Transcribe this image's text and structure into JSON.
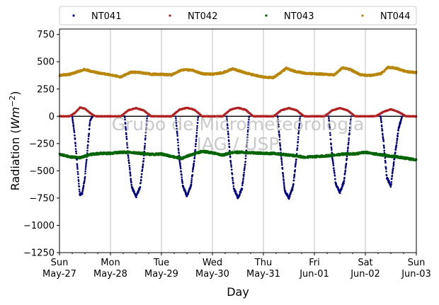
{
  "chart_data": {
    "type": "scatter",
    "xlabel": "Day",
    "ylabel": "Radiation",
    "ylabel_unit": "Wm",
    "ylabel_unit_exp": "−2",
    "ylim": [
      -1250,
      800
    ],
    "xlim": [
      0,
      7
    ],
    "yticks": [
      -1250,
      -1000,
      -750,
      -500,
      -250,
      0,
      250,
      500,
      750
    ],
    "ytick_labels": [
      "−1250",
      "−1000",
      "−750",
      "−500",
      "−250",
      "0",
      "250",
      "500",
      "750"
    ],
    "xticks": [
      {
        "day": 0,
        "top": "Sun",
        "bottom": "May-27"
      },
      {
        "day": 1,
        "top": "Mon",
        "bottom": "May-28"
      },
      {
        "day": 2,
        "top": "Tue",
        "bottom": "May-29"
      },
      {
        "day": 3,
        "top": "Wed",
        "bottom": "May-30"
      },
      {
        "day": 4,
        "top": "Thu",
        "bottom": "May-31"
      },
      {
        "day": 5,
        "top": "Fri",
        "bottom": "Jun-01"
      },
      {
        "day": 6,
        "top": "Sat",
        "bottom": "Jun-02"
      },
      {
        "day": 7,
        "top": "Sun",
        "bottom": "Jun-03"
      }
    ],
    "grid": "vertical",
    "legend_placement": "top",
    "watermark": [
      "Grupo de Micrometeorologia",
      "IAG / USP"
    ],
    "series": [
      {
        "name": "NT041",
        "color": "#000080",
        "daily_min": [
          -760,
          -740,
          -740,
          -750,
          -750,
          -700,
          -660
        ],
        "points": [
          [
            0.25,
            0
          ],
          [
            0.3,
            -180
          ],
          [
            0.35,
            -460
          ],
          [
            0.4,
            -720
          ],
          [
            0.45,
            -700
          ],
          [
            0.5,
            -560
          ],
          [
            0.55,
            -300
          ],
          [
            0.6,
            -40
          ],
          [
            0.65,
            0
          ],
          [
            1.28,
            0
          ],
          [
            1.35,
            -370
          ],
          [
            1.42,
            -650
          ],
          [
            1.5,
            -740
          ],
          [
            1.58,
            -650
          ],
          [
            1.65,
            -400
          ],
          [
            1.72,
            0
          ],
          [
            2.28,
            0
          ],
          [
            2.35,
            -380
          ],
          [
            2.42,
            -640
          ],
          [
            2.5,
            -730
          ],
          [
            2.58,
            -630
          ],
          [
            2.65,
            -380
          ],
          [
            2.72,
            0
          ],
          [
            3.28,
            0
          ],
          [
            3.35,
            -380
          ],
          [
            3.42,
            -660
          ],
          [
            3.5,
            -750
          ],
          [
            3.58,
            -660
          ],
          [
            3.65,
            -400
          ],
          [
            3.72,
            0
          ],
          [
            4.28,
            0
          ],
          [
            4.35,
            -380
          ],
          [
            4.42,
            -680
          ],
          [
            4.5,
            -750
          ],
          [
            4.58,
            -650
          ],
          [
            4.65,
            -370
          ],
          [
            4.72,
            0
          ],
          [
            5.28,
            0
          ],
          [
            5.35,
            -370
          ],
          [
            5.42,
            -620
          ],
          [
            5.5,
            -700
          ],
          [
            5.58,
            -600
          ],
          [
            5.65,
            -330
          ],
          [
            5.72,
            0
          ],
          [
            6.3,
            0
          ],
          [
            6.36,
            -250
          ],
          [
            6.42,
            -560
          ],
          [
            6.5,
            -640
          ],
          [
            6.56,
            -420
          ],
          [
            6.65,
            -120
          ],
          [
            6.72,
            0
          ]
        ]
      },
      {
        "name": "NT042",
        "color": "#b22222",
        "points": [
          [
            0.0,
            0
          ],
          [
            0.2,
            0
          ],
          [
            0.3,
            30
          ],
          [
            0.4,
            80
          ],
          [
            0.5,
            70
          ],
          [
            0.6,
            30
          ],
          [
            0.7,
            0
          ],
          [
            1.2,
            0
          ],
          [
            1.35,
            55
          ],
          [
            1.5,
            75
          ],
          [
            1.65,
            55
          ],
          [
            1.8,
            0
          ],
          [
            2.2,
            0
          ],
          [
            2.35,
            60
          ],
          [
            2.5,
            78
          ],
          [
            2.65,
            60
          ],
          [
            2.8,
            0
          ],
          [
            3.2,
            0
          ],
          [
            3.35,
            60
          ],
          [
            3.5,
            78
          ],
          [
            3.65,
            60
          ],
          [
            3.8,
            0
          ],
          [
            4.2,
            0
          ],
          [
            4.35,
            55
          ],
          [
            4.5,
            75
          ],
          [
            4.65,
            55
          ],
          [
            4.8,
            0
          ],
          [
            5.2,
            0
          ],
          [
            5.35,
            55
          ],
          [
            5.5,
            75
          ],
          [
            5.65,
            55
          ],
          [
            5.8,
            0
          ],
          [
            6.2,
            0
          ],
          [
            6.35,
            40
          ],
          [
            6.5,
            65
          ],
          [
            6.65,
            40
          ],
          [
            6.8,
            0
          ],
          [
            7.0,
            0
          ]
        ]
      },
      {
        "name": "NT043",
        "color": "#006400",
        "points": [
          [
            0.0,
            -350
          ],
          [
            0.2,
            -370
          ],
          [
            0.4,
            -380
          ],
          [
            0.6,
            -350
          ],
          [
            0.8,
            -340
          ],
          [
            1.0,
            -340
          ],
          [
            1.2,
            -330
          ],
          [
            1.4,
            -330
          ],
          [
            1.6,
            -340
          ],
          [
            1.8,
            -350
          ],
          [
            2.0,
            -345
          ],
          [
            2.2,
            -370
          ],
          [
            2.4,
            -385
          ],
          [
            2.6,
            -350
          ],
          [
            2.8,
            -320
          ],
          [
            3.0,
            -335
          ],
          [
            3.2,
            -355
          ],
          [
            3.4,
            -330
          ],
          [
            3.6,
            -330
          ],
          [
            3.8,
            -335
          ],
          [
            4.0,
            -340
          ],
          [
            4.2,
            -340
          ],
          [
            4.4,
            -350
          ],
          [
            4.6,
            -360
          ],
          [
            4.8,
            -375
          ],
          [
            5.0,
            -370
          ],
          [
            5.2,
            -365
          ],
          [
            5.4,
            -355
          ],
          [
            5.6,
            -345
          ],
          [
            5.8,
            -345
          ],
          [
            6.0,
            -330
          ],
          [
            6.2,
            -345
          ],
          [
            6.4,
            -360
          ],
          [
            6.6,
            -370
          ],
          [
            6.8,
            -385
          ],
          [
            7.0,
            -400
          ]
        ]
      },
      {
        "name": "NT044",
        "color": "#b8860b",
        "points": [
          [
            0.0,
            375
          ],
          [
            0.2,
            385
          ],
          [
            0.4,
            415
          ],
          [
            0.5,
            430
          ],
          [
            0.6,
            415
          ],
          [
            0.8,
            395
          ],
          [
            1.0,
            380
          ],
          [
            1.2,
            360
          ],
          [
            1.4,
            405
          ],
          [
            1.6,
            400
          ],
          [
            1.8,
            385
          ],
          [
            2.0,
            385
          ],
          [
            2.2,
            380
          ],
          [
            2.4,
            425
          ],
          [
            2.6,
            425
          ],
          [
            2.8,
            390
          ],
          [
            3.0,
            385
          ],
          [
            3.2,
            400
          ],
          [
            3.4,
            435
          ],
          [
            3.6,
            405
          ],
          [
            3.8,
            380
          ],
          [
            4.0,
            360
          ],
          [
            4.2,
            355
          ],
          [
            4.45,
            440
          ],
          [
            4.6,
            415
          ],
          [
            4.8,
            395
          ],
          [
            5.0,
            390
          ],
          [
            5.2,
            385
          ],
          [
            5.4,
            380
          ],
          [
            5.55,
            445
          ],
          [
            5.7,
            430
          ],
          [
            5.9,
            380
          ],
          [
            6.1,
            375
          ],
          [
            6.3,
            390
          ],
          [
            6.45,
            450
          ],
          [
            6.6,
            440
          ],
          [
            6.8,
            410
          ],
          [
            7.0,
            400
          ]
        ]
      }
    ]
  }
}
